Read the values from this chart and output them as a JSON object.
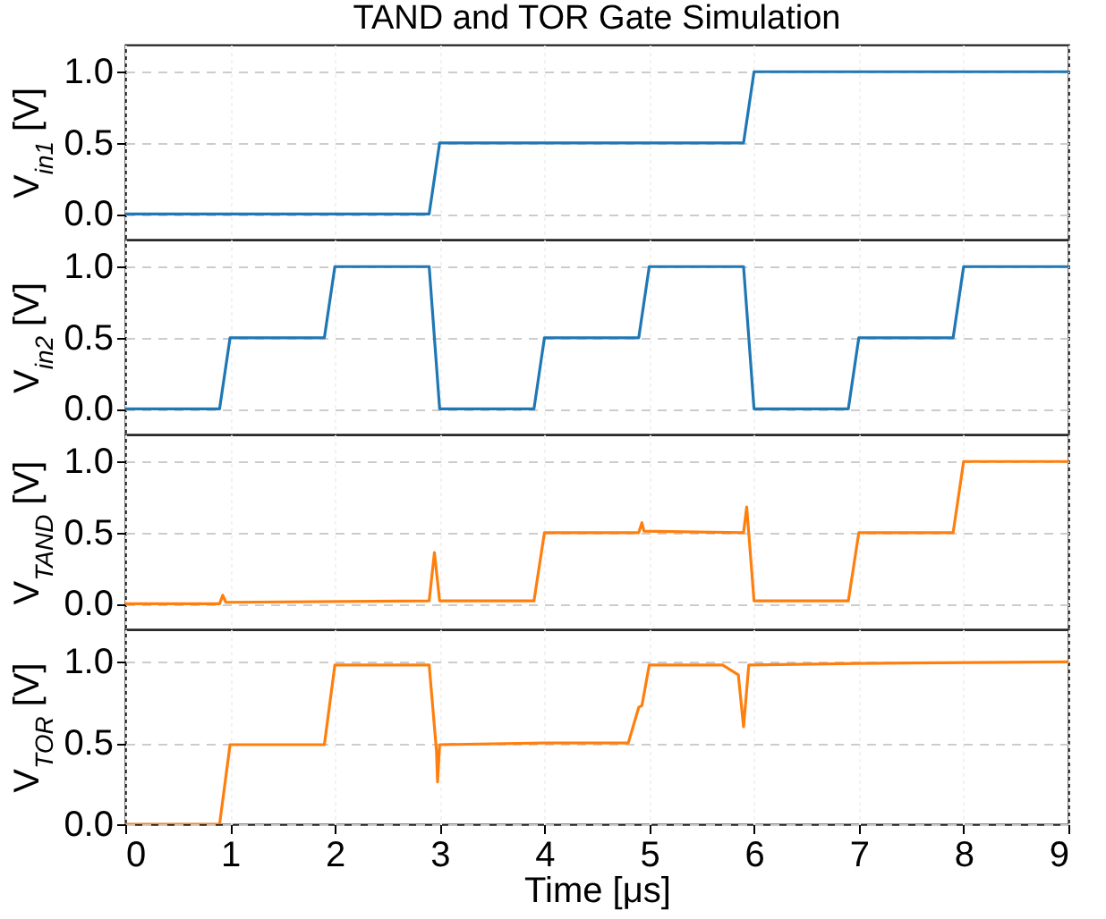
{
  "chart_data": [
    {
      "type": "line",
      "title": "TAND and TOR Gate Simulation",
      "ylabel": "V$_{in1}$ [V]",
      "x": [
        0,
        2.9,
        3.0,
        5.9,
        6.0,
        9
      ],
      "series": [
        {
          "color": "#1f77b4",
          "values": [
            0,
            0,
            0.5,
            0.5,
            1.0,
            1.0
          ]
        }
      ],
      "xlim": [
        0,
        9
      ],
      "xticks": [
        0,
        1,
        2,
        3,
        4,
        5,
        6,
        7,
        8,
        9
      ],
      "ylim": [
        -0.18,
        1.19
      ],
      "yticks": [
        {
          "value": 0,
          "label": "0.0"
        },
        {
          "value": 0.5,
          "label": "0.5"
        },
        {
          "value": 1,
          "label": "1.0"
        }
      ],
      "grid": true,
      "tick_labels": "y"
    },
    {
      "type": "line",
      "ylabel": "V$_{in2}$ [V]",
      "x": [
        0,
        0.9,
        1.0,
        1.9,
        2.0,
        2.9,
        3.0,
        3.9,
        4.0,
        4.9,
        5.0,
        5.9,
        6.0,
        6.9,
        7.0,
        7.9,
        8.0,
        9
      ],
      "series": [
        {
          "color": "#1f77b4",
          "values": [
            0,
            0,
            0.5,
            0.5,
            1,
            1,
            0,
            0,
            0.5,
            0.5,
            1,
            1,
            0,
            0,
            0.5,
            0.5,
            1,
            1
          ]
        }
      ],
      "xlim": [
        0,
        9
      ],
      "xticks": [
        0,
        1,
        2,
        3,
        4,
        5,
        6,
        7,
        8,
        9
      ],
      "ylim": [
        -0.18,
        1.19
      ],
      "yticks": [
        {
          "value": 0,
          "label": "0.0"
        },
        {
          "value": 0.5,
          "label": "0.5"
        },
        {
          "value": 1,
          "label": "1.0"
        }
      ],
      "grid": true,
      "tick_labels": "y"
    },
    {
      "type": "line",
      "ylabel": "V$_{TAND}$ [V]",
      "x": [
        0,
        0.9,
        0.93,
        0.96,
        2.9,
        2.95,
        3.0,
        3.9,
        4.0,
        4.9,
        4.93,
        4.95,
        5.9,
        5.93,
        5.96,
        6.0,
        6.9,
        7.0,
        7.9,
        8.0,
        9
      ],
      "series": [
        {
          "color": "#ff7f0e",
          "values": [
            0,
            0,
            0.06,
            0.01,
            0.02,
            0.36,
            0.02,
            0.02,
            0.5,
            0.5,
            0.57,
            0.51,
            0.5,
            0.68,
            0.4,
            0.02,
            0.02,
            0.5,
            0.5,
            1.0,
            1.0
          ]
        }
      ],
      "xlim": [
        0,
        9
      ],
      "xticks": [
        0,
        1,
        2,
        3,
        4,
        5,
        6,
        7,
        8,
        9
      ],
      "ylim": [
        -0.18,
        1.19
      ],
      "yticks": [
        {
          "value": 0,
          "label": "0.0"
        },
        {
          "value": 0.5,
          "label": "0.5"
        },
        {
          "value": 1,
          "label": "1.0"
        }
      ],
      "grid": true,
      "tick_labels": "y"
    },
    {
      "type": "line",
      "ylabel": "V$_{TOR}$ [V]",
      "xlabel": "Time [μs]",
      "x": [
        0,
        0.9,
        1.0,
        1.9,
        2.0,
        2.9,
        2.97,
        2.98,
        3.0,
        4.0,
        4.8,
        4.9,
        4.93,
        5.0,
        5.7,
        5.85,
        5.9,
        5.95,
        7,
        9
      ],
      "series": [
        {
          "color": "#ff7f0e",
          "values": [
            0,
            0,
            0.49,
            0.49,
            0.98,
            0.98,
            0.45,
            0.26,
            0.49,
            0.5,
            0.5,
            0.72,
            0.73,
            0.98,
            0.98,
            0.92,
            0.6,
            0.98,
            0.99,
            1.0
          ]
        }
      ],
      "xlim": [
        0,
        9
      ],
      "xticks": [
        0,
        1,
        2,
        3,
        4,
        5,
        6,
        7,
        8,
        9
      ],
      "ylim": [
        0,
        1.2
      ],
      "yticks": [
        {
          "value": 0,
          "label": "0.0"
        },
        {
          "value": 0.5,
          "label": "0.5"
        },
        {
          "value": 1,
          "label": "1.0"
        }
      ],
      "grid": true
    }
  ]
}
